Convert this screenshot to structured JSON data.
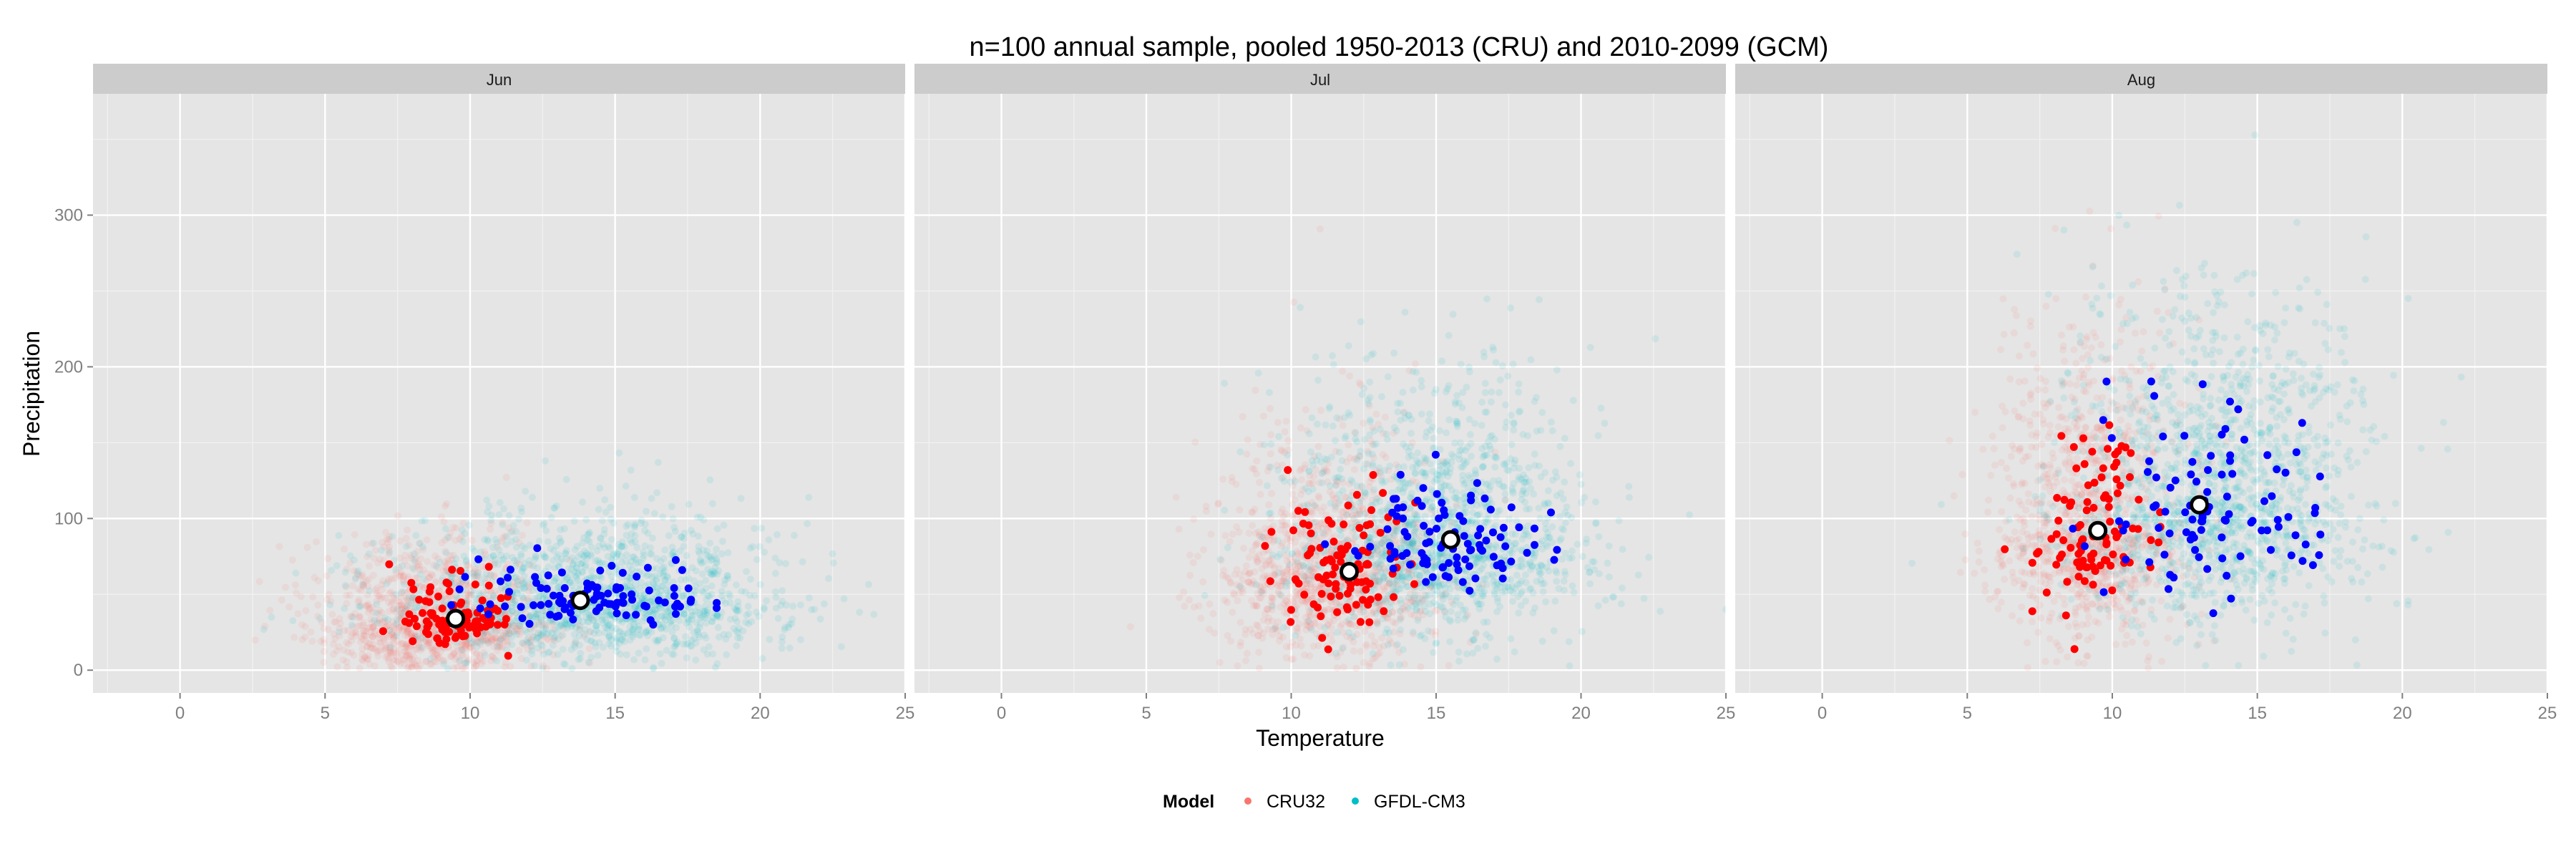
{
  "chart_data": {
    "type": "scatter",
    "title": "n=100 annual sample, pooled 1950-2013 (CRU) and 2010-2099 (GCM)",
    "xlabel": "Temperature",
    "ylabel": "Precipitation",
    "xlim": [
      -3,
      25
    ],
    "ylim": [
      -15,
      380
    ],
    "x_ticks": [
      0,
      5,
      10,
      15,
      20,
      25
    ],
    "y_ticks": [
      0,
      100,
      200,
      300
    ],
    "grid": true,
    "legend": {
      "title": "Model",
      "position": "bottom",
      "entries": [
        {
          "name": "CRU32",
          "color": "#F8766D"
        },
        {
          "name": "GFDL-CM3",
          "color": "#00BFC4"
        }
      ]
    },
    "colors": {
      "CRU32_pooled": "#F8766D",
      "GFDL_pooled": "#00BFC4",
      "CRU32_sample": "#FF0000",
      "GFDL_sample": "#0000FF",
      "mean_marker": "#FFFFFF"
    },
    "panels": [
      {
        "label": "Jun",
        "cloud": {
          "CRU32": {
            "mean_x": 8.7,
            "mean_y": 30,
            "sd_x": 2.0,
            "sd_y": 20
          },
          "GFDL-CM3": {
            "mean_x": 14.0,
            "mean_y": 45,
            "sd_x": 3.4,
            "sd_y": 22
          }
        },
        "sample": {
          "CRU32": {
            "mean_x": 9.5,
            "mean_y": 34,
            "sd_x": 1.0,
            "sd_y": 12
          },
          "GFDL-CM3": {
            "mean_x": 13.8,
            "mean_y": 45,
            "sd_x": 2.2,
            "sd_y": 9
          }
        },
        "means": [
          {
            "series": "CRU32",
            "x": 9.5,
            "y": 34
          },
          {
            "series": "GFDL-CM3",
            "x": 13.8,
            "y": 46
          }
        ]
      },
      {
        "label": "Jul",
        "cloud": {
          "CRU32": {
            "mean_x": 11.3,
            "mean_y": 65,
            "sd_x": 2.0,
            "sd_y": 35
          },
          "GFDL-CM3": {
            "mean_x": 15.0,
            "mean_y": 85,
            "sd_x": 2.6,
            "sd_y": 38
          }
        },
        "sample": {
          "CRU32": {
            "mean_x": 12.0,
            "mean_y": 60,
            "sd_x": 1.1,
            "sd_y": 24
          },
          "GFDL-CM3": {
            "mean_x": 15.5,
            "mean_y": 84,
            "sd_x": 1.8,
            "sd_y": 19
          }
        },
        "means": [
          {
            "series": "CRU32",
            "x": 12.0,
            "y": 65
          },
          {
            "series": "GFDL-CM3",
            "x": 15.5,
            "y": 86
          }
        ]
      },
      {
        "label": "Aug",
        "cloud": {
          "CRU32": {
            "mean_x": 9.2,
            "mean_y": 90,
            "sd_x": 1.7,
            "sd_y": 48
          },
          "GFDL-CM3": {
            "mean_x": 13.5,
            "mean_y": 110,
            "sd_x": 2.6,
            "sd_y": 50
          }
        },
        "sample": {
          "CRU32": {
            "mean_x": 9.4,
            "mean_y": 90,
            "sd_x": 1.0,
            "sd_y": 32
          },
          "GFDL-CM3": {
            "mean_x": 13.2,
            "mean_y": 105,
            "sd_x": 1.9,
            "sd_y": 34
          }
        },
        "means": [
          {
            "series": "CRU32",
            "x": 9.5,
            "y": 92
          },
          {
            "series": "GFDL-CM3",
            "x": 13.0,
            "y": 109
          }
        ]
      }
    ]
  }
}
